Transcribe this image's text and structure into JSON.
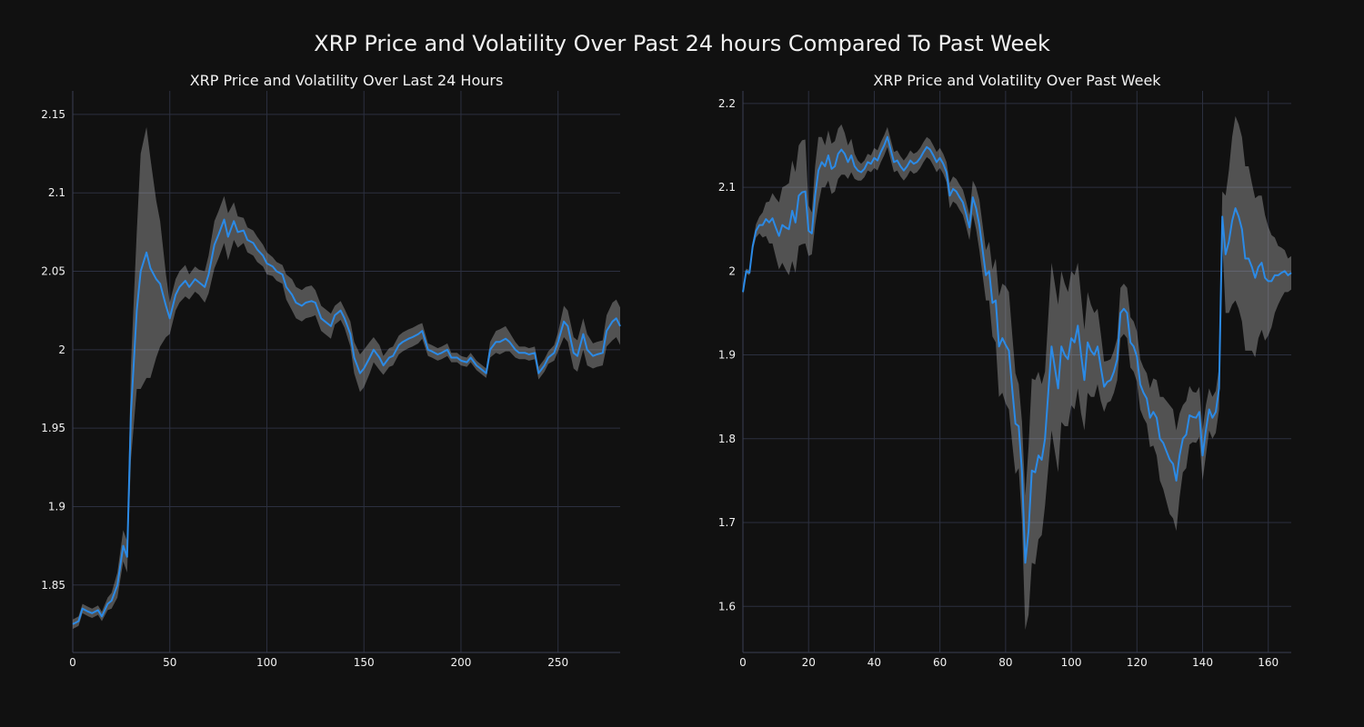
{
  "figure": {
    "title": "XRP Price and Volatility Over Past 24 hours Compared To Past Week",
    "background": "#111111",
    "line_color": "#2b8ae6",
    "band_color": "#bdbdbd",
    "grid_color": "#2c3040",
    "text_color": "#f2f2f2"
  },
  "chart_data": [
    {
      "type": "line",
      "title": "XRP Price and Volatility Over Last 24 Hours",
      "xlabel": "",
      "ylabel": "",
      "xlim": [
        0,
        282
      ],
      "ylim": [
        1.807,
        2.165
      ],
      "xticks": [
        0,
        50,
        100,
        150,
        200,
        250
      ],
      "yticks": [
        1.85,
        1.9,
        1.95,
        2.0,
        2.05,
        2.1,
        2.15
      ],
      "ytick_labels": [
        "1.85",
        "1.9",
        "1.95",
        "2",
        "2.05",
        "2.1",
        "2.15"
      ],
      "grid": true,
      "band": "volatility band (shaded)",
      "series": [
        {
          "x": [
            0,
            3,
            5,
            8,
            10,
            13,
            15,
            18,
            20,
            23,
            26,
            28,
            30,
            33,
            35,
            38,
            40,
            43,
            45,
            48,
            50,
            53,
            55,
            58,
            60,
            63,
            65,
            68,
            70,
            73,
            75,
            78,
            80,
            83,
            85,
            88,
            90,
            93,
            95,
            98,
            100,
            103,
            105,
            108,
            110,
            113,
            115,
            118,
            120,
            123,
            125,
            128,
            130,
            133,
            135,
            138,
            140,
            143,
            145,
            148,
            150,
            153,
            155,
            158,
            160,
            163,
            165,
            168,
            170,
            173,
            175,
            178,
            180,
            183,
            185,
            188,
            190,
            193,
            195,
            198,
            200,
            203,
            205,
            208,
            210,
            213,
            215,
            218,
            220,
            223,
            225,
            228,
            230,
            233,
            235,
            238,
            240,
            243,
            245,
            248,
            250,
            253,
            255,
            258,
            260,
            263,
            265,
            268,
            270,
            273,
            275,
            278,
            280,
            282
          ],
          "values": [
            1.825,
            1.827,
            1.835,
            1.833,
            1.832,
            1.834,
            1.83,
            1.838,
            1.84,
            1.85,
            1.875,
            1.868,
            1.96,
            2.025,
            2.05,
            2.062,
            2.052,
            2.045,
            2.042,
            2.028,
            2.02,
            2.035,
            2.04,
            2.044,
            2.04,
            2.045,
            2.043,
            2.04,
            2.048,
            2.067,
            2.073,
            2.083,
            2.072,
            2.082,
            2.075,
            2.076,
            2.07,
            2.068,
            2.064,
            2.06,
            2.055,
            2.053,
            2.05,
            2.048,
            2.04,
            2.035,
            2.03,
            2.028,
            2.03,
            2.031,
            2.03,
            2.02,
            2.018,
            2.015,
            2.022,
            2.025,
            2.02,
            2.01,
            1.995,
            1.985,
            1.988,
            1.995,
            2.0,
            1.995,
            1.99,
            1.995,
            1.996,
            2.003,
            2.005,
            2.007,
            2.008,
            2.01,
            2.012,
            2.0,
            1.999,
            1.997,
            1.998,
            2.0,
            1.995,
            1.995,
            1.993,
            1.992,
            1.995,
            1.99,
            1.988,
            1.985,
            2.0,
            2.005,
            2.005,
            2.007,
            2.005,
            2.0,
            1.998,
            1.998,
            1.997,
            1.998,
            1.985,
            1.99,
            1.995,
            1.998,
            2.005,
            2.018,
            2.015,
            1.998,
            1.996,
            2.01,
            2.0,
            1.996,
            1.997,
            1.998,
            2.012,
            2.018,
            2.02,
            2.015
          ],
          "band_width": [
            0.003,
            0.003,
            0.003,
            0.003,
            0.003,
            0.003,
            0.003,
            0.004,
            0.005,
            0.008,
            0.01,
            0.01,
            0.03,
            0.05,
            0.075,
            0.08,
            0.07,
            0.05,
            0.04,
            0.02,
            0.01,
            0.01,
            0.01,
            0.01,
            0.008,
            0.008,
            0.008,
            0.01,
            0.012,
            0.015,
            0.015,
            0.015,
            0.015,
            0.012,
            0.01,
            0.008,
            0.008,
            0.008,
            0.008,
            0.007,
            0.007,
            0.006,
            0.006,
            0.006,
            0.008,
            0.01,
            0.01,
            0.01,
            0.01,
            0.01,
            0.008,
            0.008,
            0.008,
            0.008,
            0.006,
            0.006,
            0.006,
            0.008,
            0.01,
            0.012,
            0.012,
            0.01,
            0.008,
            0.008,
            0.006,
            0.006,
            0.006,
            0.006,
            0.006,
            0.006,
            0.006,
            0.006,
            0.005,
            0.004,
            0.004,
            0.004,
            0.004,
            0.004,
            0.003,
            0.003,
            0.003,
            0.003,
            0.003,
            0.003,
            0.003,
            0.003,
            0.005,
            0.007,
            0.008,
            0.008,
            0.006,
            0.005,
            0.004,
            0.004,
            0.004,
            0.004,
            0.004,
            0.004,
            0.004,
            0.005,
            0.006,
            0.01,
            0.01,
            0.01,
            0.01,
            0.01,
            0.01,
            0.008,
            0.008,
            0.008,
            0.01,
            0.012,
            0.012,
            0.012
          ]
        }
      ]
    },
    {
      "type": "line",
      "title": "XRP Price and Volatility Over Past Week",
      "xlabel": "",
      "ylabel": "",
      "xlim": [
        0,
        167
      ],
      "ylim": [
        1.545,
        2.215
      ],
      "xticks": [
        0,
        20,
        40,
        60,
        80,
        100,
        120,
        140,
        160
      ],
      "yticks": [
        1.6,
        1.7,
        1.8,
        1.9,
        2.0,
        2.1,
        2.2
      ],
      "ytick_labels": [
        "1.6",
        "1.7",
        "1.8",
        "1.9",
        "2",
        "2.1",
        "2.2"
      ],
      "grid": true,
      "band": "volatility band (shaded)",
      "series": [
        {
          "x": [
            0,
            1,
            2,
            3,
            4,
            5,
            6,
            7,
            8,
            9,
            10,
            11,
            12,
            13,
            14,
            15,
            16,
            17,
            18,
            19,
            20,
            21,
            22,
            23,
            24,
            25,
            26,
            27,
            28,
            29,
            30,
            31,
            32,
            33,
            34,
            35,
            36,
            37,
            38,
            39,
            40,
            41,
            42,
            43,
            44,
            45,
            46,
            47,
            48,
            49,
            50,
            51,
            52,
            53,
            54,
            55,
            56,
            57,
            58,
            59,
            60,
            61,
            62,
            63,
            64,
            65,
            66,
            67,
            68,
            69,
            70,
            71,
            72,
            73,
            74,
            75,
            76,
            77,
            78,
            79,
            80,
            81,
            82,
            83,
            84,
            85,
            86,
            87,
            88,
            89,
            90,
            91,
            92,
            93,
            94,
            95,
            96,
            97,
            98,
            99,
            100,
            101,
            102,
            103,
            104,
            105,
            106,
            107,
            108,
            109,
            110,
            111,
            112,
            113,
            114,
            115,
            116,
            117,
            118,
            119,
            120,
            121,
            122,
            123,
            124,
            125,
            126,
            127,
            128,
            129,
            130,
            131,
            132,
            133,
            134,
            135,
            136,
            137,
            138,
            139,
            140,
            141,
            142,
            143,
            144,
            145,
            146,
            147,
            148,
            149,
            150,
            151,
            152,
            153,
            154,
            155,
            156,
            157,
            158,
            159,
            160,
            161,
            162,
            163,
            164,
            165,
            166,
            167
          ],
          "values": [
            1.975,
            2.0,
            1.998,
            2.03,
            2.048,
            2.055,
            2.055,
            2.062,
            2.058,
            2.063,
            2.052,
            2.042,
            2.055,
            2.052,
            2.05,
            2.072,
            2.058,
            2.09,
            2.094,
            2.095,
            2.048,
            2.045,
            2.09,
            2.12,
            2.13,
            2.125,
            2.138,
            2.122,
            2.125,
            2.14,
            2.145,
            2.14,
            2.13,
            2.138,
            2.125,
            2.12,
            2.118,
            2.122,
            2.13,
            2.128,
            2.135,
            2.132,
            2.142,
            2.15,
            2.16,
            2.145,
            2.13,
            2.132,
            2.125,
            2.12,
            2.125,
            2.132,
            2.128,
            2.13,
            2.135,
            2.142,
            2.148,
            2.145,
            2.138,
            2.13,
            2.135,
            2.128,
            2.118,
            2.09,
            2.098,
            2.095,
            2.088,
            2.082,
            2.068,
            2.052,
            2.088,
            2.075,
            2.055,
            2.025,
            1.995,
            2.0,
            1.962,
            1.965,
            1.91,
            1.92,
            1.912,
            1.905,
            1.86,
            1.818,
            1.815,
            1.76,
            1.652,
            1.69,
            1.762,
            1.76,
            1.78,
            1.775,
            1.8,
            1.855,
            1.91,
            1.885,
            1.86,
            1.91,
            1.9,
            1.895,
            1.92,
            1.915,
            1.935,
            1.9,
            1.87,
            1.915,
            1.905,
            1.9,
            1.91,
            1.885,
            1.862,
            1.868,
            1.87,
            1.88,
            1.895,
            1.95,
            1.955,
            1.95,
            1.915,
            1.91,
            1.898,
            1.865,
            1.855,
            1.848,
            1.825,
            1.832,
            1.825,
            1.8,
            1.795,
            1.785,
            1.775,
            1.77,
            1.75,
            1.78,
            1.8,
            1.805,
            1.828,
            1.826,
            1.825,
            1.832,
            1.78,
            1.81,
            1.835,
            1.825,
            1.832,
            1.86,
            2.065,
            2.02,
            2.035,
            2.06,
            2.075,
            2.065,
            2.05,
            2.015,
            2.015,
            2.005,
            1.992,
            2.005,
            2.01,
            1.992,
            1.988,
            1.988,
            1.995,
            1.995,
            1.998,
            2.0,
            1.995,
            1.998
          ],
          "band_width": [
            0.003,
            0.003,
            0.003,
            0.005,
            0.008,
            0.01,
            0.015,
            0.02,
            0.025,
            0.03,
            0.035,
            0.04,
            0.045,
            0.05,
            0.055,
            0.06,
            0.06,
            0.06,
            0.062,
            0.062,
            0.03,
            0.025,
            0.035,
            0.04,
            0.03,
            0.025,
            0.03,
            0.03,
            0.03,
            0.03,
            0.03,
            0.025,
            0.02,
            0.02,
            0.015,
            0.012,
            0.01,
            0.01,
            0.01,
            0.01,
            0.012,
            0.012,
            0.012,
            0.012,
            0.012,
            0.012,
            0.012,
            0.012,
            0.012,
            0.012,
            0.012,
            0.012,
            0.012,
            0.012,
            0.012,
            0.012,
            0.012,
            0.012,
            0.012,
            0.012,
            0.012,
            0.012,
            0.012,
            0.015,
            0.015,
            0.015,
            0.015,
            0.015,
            0.015,
            0.015,
            0.02,
            0.025,
            0.03,
            0.03,
            0.03,
            0.035,
            0.04,
            0.05,
            0.06,
            0.065,
            0.07,
            0.07,
            0.065,
            0.06,
            0.05,
            0.06,
            0.08,
            0.1,
            0.11,
            0.11,
            0.1,
            0.09,
            0.08,
            0.09,
            0.1,
            0.1,
            0.1,
            0.09,
            0.085,
            0.08,
            0.08,
            0.08,
            0.075,
            0.07,
            0.06,
            0.06,
            0.055,
            0.05,
            0.045,
            0.04,
            0.03,
            0.025,
            0.025,
            0.025,
            0.025,
            0.03,
            0.03,
            0.03,
            0.03,
            0.03,
            0.03,
            0.03,
            0.03,
            0.03,
            0.035,
            0.04,
            0.045,
            0.05,
            0.055,
            0.06,
            0.065,
            0.065,
            0.06,
            0.05,
            0.04,
            0.04,
            0.035,
            0.03,
            0.03,
            0.03,
            0.03,
            0.03,
            0.025,
            0.025,
            0.025,
            0.025,
            0.03,
            0.07,
            0.085,
            0.1,
            0.11,
            0.11,
            0.11,
            0.11,
            0.11,
            0.1,
            0.095,
            0.085,
            0.08,
            0.075,
            0.065,
            0.055,
            0.045,
            0.035,
            0.03,
            0.025,
            0.02,
            0.02
          ]
        }
      ]
    }
  ]
}
